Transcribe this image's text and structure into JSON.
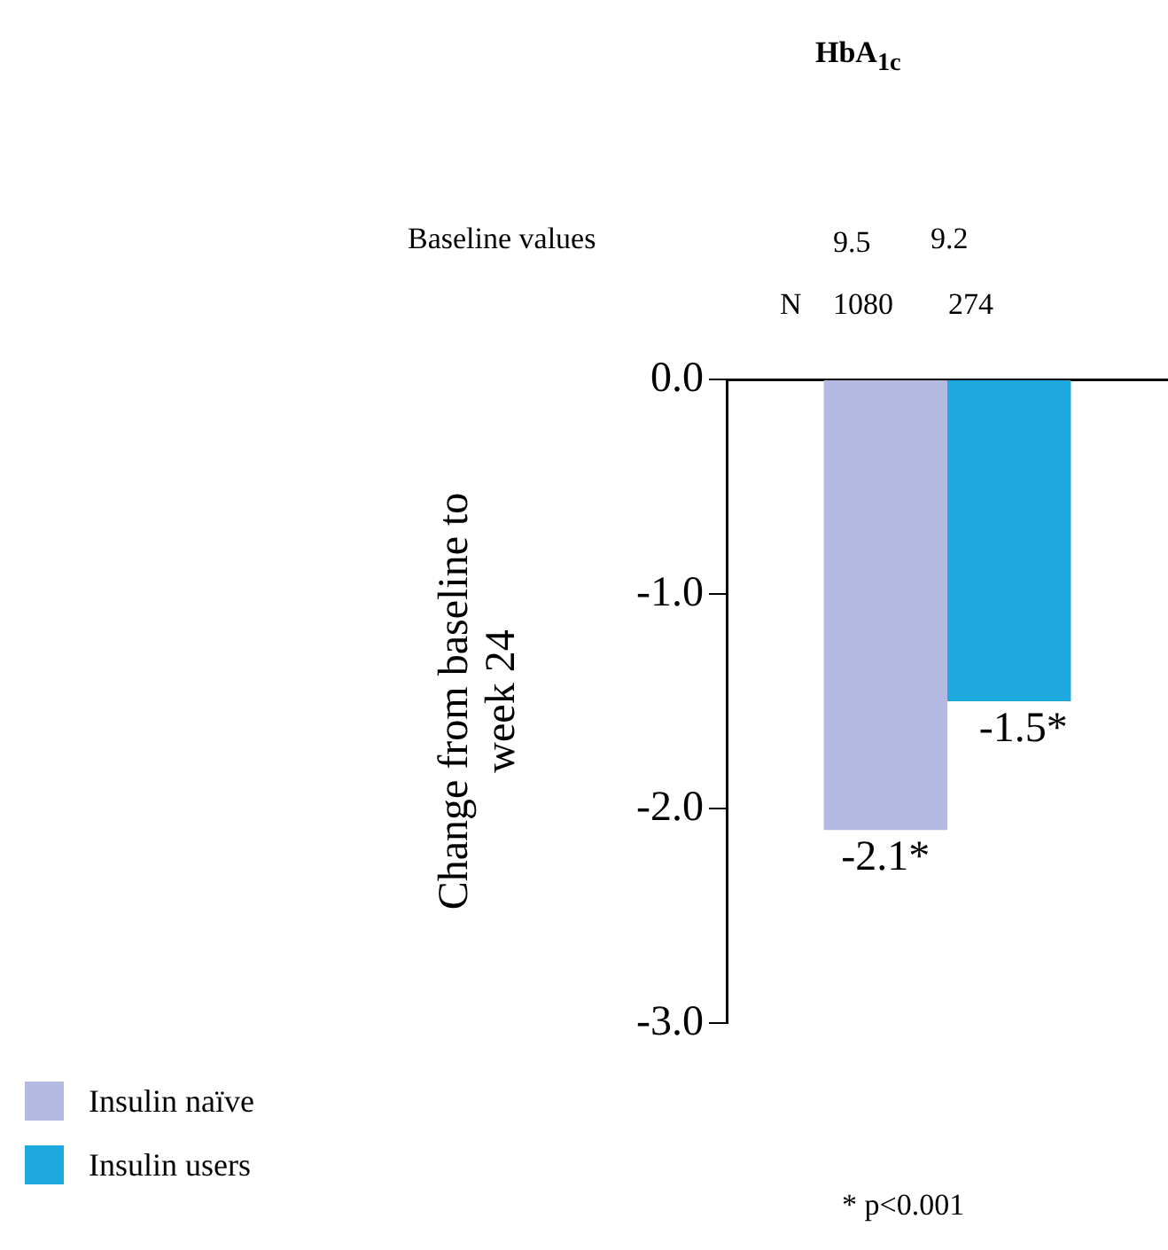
{
  "chart_data": {
    "type": "bar",
    "title": "HbA$_{1c}$",
    "ylabel": "Change from baseline to week 24",
    "categories": [
      null
    ],
    "series": [
      {
        "name": "Insulin naïve",
        "color": "#b4b9e2",
        "values": [
          -2.1
        ],
        "value_labels": [
          "-2.1*"
        ]
      },
      {
        "name": "Insulin users",
        "color": "#1eaade",
        "values": [
          -1.5
        ],
        "value_labels": [
          "-1.5*"
        ]
      }
    ],
    "ylim": [
      -3,
      0
    ],
    "yticks": [
      {
        "value": 0,
        "label": "0.0"
      },
      {
        "value": -1,
        "label": "-1.0"
      },
      {
        "value": -2,
        "label": "-2.0"
      },
      {
        "value": -3,
        "label": "-3.0"
      }
    ],
    "grid": false,
    "legend": "bottom left",
    "annotations": [
      "Baseline values",
      "9.5",
      "9.2",
      "N",
      "1080",
      "274",
      "* p<0.001"
    ]
  }
}
